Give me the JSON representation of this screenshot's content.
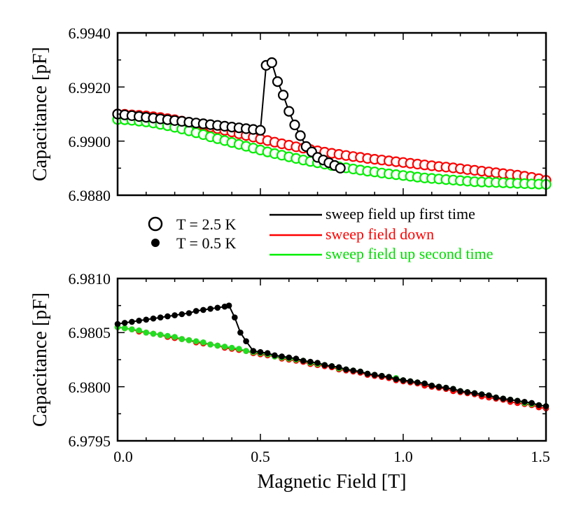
{
  "chart_data": [
    {
      "type": "scatter",
      "title": "",
      "temperature_label": "T = 2.5 K",
      "xlabel": "",
      "ylabel": "Capacitance [pF]",
      "xlim": [
        0,
        1.5
      ],
      "ylim": [
        6.988,
        6.994
      ],
      "yticks": [
        "6.9880",
        "6.9900",
        "6.9920",
        "6.9940"
      ],
      "series": [
        {
          "name": "sweep field up first time",
          "color": "#000000",
          "marker": "open-circle",
          "x": [
            0.0,
            0.025,
            0.05,
            0.075,
            0.1,
            0.125,
            0.15,
            0.175,
            0.2,
            0.225,
            0.25,
            0.275,
            0.3,
            0.325,
            0.35,
            0.375,
            0.4,
            0.425,
            0.45,
            0.475,
            0.5,
            0.52,
            0.54,
            0.56,
            0.58,
            0.6,
            0.62,
            0.64,
            0.66,
            0.68,
            0.7,
            0.72,
            0.74,
            0.76,
            0.78
          ],
          "y": [
            6.991,
            6.99097,
            6.99094,
            6.99091,
            6.99088,
            6.99085,
            6.99082,
            6.99079,
            6.99076,
            6.99073,
            6.9907,
            6.99067,
            6.99064,
            6.99061,
            6.99058,
            6.99055,
            6.99052,
            6.99049,
            6.99046,
            6.99043,
            6.9904,
            6.9928,
            6.9929,
            6.9922,
            6.9917,
            6.9911,
            6.9906,
            6.9902,
            6.9898,
            6.9896,
            6.9894,
            6.9893,
            6.9892,
            6.9891,
            6.989
          ]
        },
        {
          "name": "sweep field down",
          "color": "#ff0000",
          "marker": "open-circle",
          "x": [
            0.0,
            0.025,
            0.05,
            0.075,
            0.1,
            0.125,
            0.15,
            0.175,
            0.2,
            0.225,
            0.25,
            0.275,
            0.3,
            0.325,
            0.35,
            0.375,
            0.4,
            0.425,
            0.45,
            0.475,
            0.5,
            0.525,
            0.55,
            0.575,
            0.6,
            0.625,
            0.65,
            0.675,
            0.7,
            0.725,
            0.75,
            0.775,
            0.8,
            0.825,
            0.85,
            0.875,
            0.9,
            0.925,
            0.95,
            0.975,
            1.0,
            1.025,
            1.05,
            1.075,
            1.1,
            1.125,
            1.15,
            1.175,
            1.2,
            1.225,
            1.25,
            1.275,
            1.3,
            1.325,
            1.35,
            1.375,
            1.4,
            1.425,
            1.45,
            1.475,
            1.5
          ],
          "y": [
            6.991,
            6.99099,
            6.99097,
            6.99095,
            6.99093,
            6.9909,
            6.99087,
            6.99083,
            6.99079,
            6.99074,
            6.99069,
            6.99064,
            6.99058,
            6.99052,
            6.99046,
            6.9904,
            6.99034,
            6.99027,
            6.99021,
            6.99015,
            6.99008,
            6.99002,
            6.98996,
            6.9899,
            6.98985,
            6.98979,
            6.98974,
            6.98969,
            6.98964,
            6.98959,
            6.98955,
            6.98951,
            6.98947,
            6.98943,
            6.9894,
            6.98936,
            6.98933,
            6.9893,
            6.98927,
            6.98924,
            6.98921,
            6.98918,
            6.98915,
            6.98912,
            6.98909,
            6.98906,
            6.98904,
            6.98901,
            6.98898,
            6.98895,
            6.98892,
            6.98889,
            6.98886,
            6.98883,
            6.9888,
            6.98877,
            6.98874,
            6.9887,
            6.98866,
            6.98861,
            6.98855
          ]
        },
        {
          "name": "sweep field up second time",
          "color": "#00ee00",
          "marker": "open-circle",
          "x": [
            0.0,
            0.025,
            0.05,
            0.075,
            0.1,
            0.125,
            0.15,
            0.175,
            0.2,
            0.225,
            0.25,
            0.275,
            0.3,
            0.325,
            0.35,
            0.375,
            0.4,
            0.425,
            0.45,
            0.475,
            0.5,
            0.525,
            0.55,
            0.575,
            0.6,
            0.625,
            0.65,
            0.675,
            0.7,
            0.725,
            0.75,
            0.775,
            0.8,
            0.825,
            0.85,
            0.875,
            0.9,
            0.925,
            0.95,
            0.975,
            1.0,
            1.025,
            1.05,
            1.075,
            1.1,
            1.125,
            1.15,
            1.175,
            1.2,
            1.225,
            1.25,
            1.275,
            1.3,
            1.325,
            1.35,
            1.375,
            1.4,
            1.425,
            1.45,
            1.475,
            1.5
          ],
          "y": [
            6.9908,
            6.99079,
            6.99077,
            6.99074,
            6.99071,
            6.99067,
            6.99062,
            6.99057,
            6.99051,
            6.99045,
            6.99038,
            6.99031,
            6.99024,
            6.99016,
            6.99009,
            6.99002,
            6.98995,
            6.98988,
            6.98981,
            6.98974,
            6.98967,
            6.9896,
            6.98954,
            6.98948,
            6.98942,
            6.98936,
            6.9893,
            6.98925,
            6.9892,
            6.98915,
            6.9891,
            6.98905,
            6.98901,
            6.98897,
            6.98893,
            6.98889,
            6.98886,
            6.98882,
            6.98879,
            6.98876,
            6.98873,
            6.9887,
            6.98867,
            6.98864,
            6.98862,
            6.9886,
            6.98858,
            6.98856,
            6.98854,
            6.98852,
            6.9885,
            6.98849,
            6.98848,
            6.98847,
            6.98846,
            6.98845,
            6.98844,
            6.98843,
            6.98842,
            6.98841,
            6.9884
          ]
        }
      ]
    },
    {
      "type": "scatter",
      "title": "",
      "temperature_label": "T = 0.5 K",
      "xlabel": "Magnetic Field [T]",
      "ylabel": "Capacitance [pF]",
      "xlim": [
        0,
        1.5
      ],
      "ylim": [
        6.9795,
        6.981
      ],
      "xticks": [
        "0.0",
        "0.5",
        "1.0",
        "1.5"
      ],
      "yticks": [
        "6.9795",
        "6.9800",
        "6.9805",
        "6.9810"
      ],
      "series": [
        {
          "name": "sweep field up first time",
          "color": "#000000",
          "marker": "filled-circle",
          "x": [
            0.0,
            0.025,
            0.05,
            0.075,
            0.1,
            0.125,
            0.15,
            0.175,
            0.2,
            0.225,
            0.25,
            0.275,
            0.3,
            0.325,
            0.35,
            0.375,
            0.39,
            0.41,
            0.43,
            0.45,
            0.475,
            0.5,
            0.525,
            0.55,
            0.575,
            0.6,
            0.625,
            0.65,
            0.675,
            0.7,
            0.725,
            0.75,
            0.775,
            0.8,
            0.825,
            0.85,
            0.875,
            0.9,
            0.925,
            0.95,
            0.975,
            1.0,
            1.025,
            1.05,
            1.075,
            1.1,
            1.125,
            1.15,
            1.175,
            1.2,
            1.225,
            1.25,
            1.275,
            1.3,
            1.325,
            1.35,
            1.375,
            1.4,
            1.425,
            1.45,
            1.475,
            1.5
          ],
          "y": [
            6.98058,
            6.98059,
            6.9806,
            6.98061,
            6.98062,
            6.98063,
            6.98064,
            6.98065,
            6.98066,
            6.98067,
            6.98068,
            6.9807,
            6.98071,
            6.98072,
            6.98073,
            6.98074,
            6.98075,
            6.98064,
            6.9805,
            6.98042,
            6.98033,
            6.98032,
            6.98031,
            6.98029,
            6.98028,
            6.98027,
            6.98026,
            6.98024,
            6.98023,
            6.98022,
            6.9802,
            6.98019,
            6.98018,
            6.98016,
            6.98015,
            6.98014,
            6.98012,
            6.98011,
            6.9801,
            6.98009,
            6.98007,
            6.98006,
            6.98005,
            6.98004,
            6.98003,
            6.98001,
            6.98,
            6.97999,
            6.97998,
            6.97996,
            6.97995,
            6.97994,
            6.97993,
            6.97992,
            6.9799,
            6.97989,
            6.97988,
            6.97987,
            6.97986,
            6.97985,
            6.97983,
            6.97982
          ]
        },
        {
          "name": "sweep field down",
          "color": "#ff0000",
          "marker": "filled-circle",
          "x": [
            0.0,
            0.025,
            0.05,
            0.075,
            0.1,
            0.125,
            0.15,
            0.175,
            0.2,
            0.225,
            0.25,
            0.275,
            0.3,
            0.325,
            0.35,
            0.375,
            0.4,
            0.425,
            0.45,
            0.475,
            0.5,
            0.525,
            0.55,
            0.575,
            0.6,
            0.625,
            0.65,
            0.675,
            0.7,
            0.725,
            0.75,
            0.775,
            0.8,
            0.825,
            0.85,
            0.875,
            0.9,
            0.925,
            0.95,
            0.975,
            1.0,
            1.025,
            1.05,
            1.075,
            1.1,
            1.125,
            1.15,
            1.175,
            1.2,
            1.225,
            1.25,
            1.275,
            1.3,
            1.325,
            1.35,
            1.375,
            1.4,
            1.425,
            1.45,
            1.475,
            1.5
          ],
          "y": [
            6.98055,
            6.98054,
            6.98053,
            6.98051,
            6.9805,
            6.98049,
            6.98048,
            6.98046,
            6.98045,
            6.98044,
            6.98043,
            6.98041,
            6.9804,
            6.98039,
            6.98038,
            6.98036,
            6.98035,
            6.98034,
            6.98033,
            6.98031,
            6.9803,
            6.98029,
            6.98028,
            6.98026,
            6.98025,
            6.98024,
            6.98023,
            6.98021,
            6.9802,
            6.98019,
            6.98018,
            6.98016,
            6.98015,
            6.98014,
            6.98013,
            6.98011,
            6.9801,
            6.98009,
            6.98008,
            6.98006,
            6.98005,
            6.98004,
            6.98003,
            6.98001,
            6.98,
            6.97999,
            6.97998,
            6.97996,
            6.97995,
            6.97994,
            6.97993,
            6.97991,
            6.9799,
            6.97989,
            6.97988,
            6.97986,
            6.97985,
            6.97984,
            6.97983,
            6.97981,
            6.9798
          ]
        },
        {
          "name": "sweep field up second time",
          "color": "#22dd22",
          "marker": "filled-circle",
          "x": [
            0.0,
            0.025,
            0.05,
            0.075,
            0.1,
            0.125,
            0.15,
            0.175,
            0.2,
            0.225,
            0.25,
            0.275,
            0.3,
            0.325,
            0.35,
            0.375,
            0.4,
            0.425,
            0.45,
            0.475,
            0.5,
            0.525,
            0.55,
            0.575,
            0.6,
            0.625,
            0.65,
            0.675,
            0.7,
            0.725,
            0.75,
            0.775,
            0.8,
            0.825,
            0.85,
            0.875,
            0.9,
            0.925,
            0.95,
            0.975,
            1.0,
            1.025,
            1.05,
            1.075,
            1.1,
            1.125,
            1.15,
            1.175,
            1.2,
            1.225,
            1.25,
            1.275,
            1.3,
            1.325,
            1.35,
            1.375,
            1.4,
            1.425,
            1.45,
            1.475,
            1.5
          ],
          "y": [
            6.98055,
            6.98054,
            6.98053,
            6.98052,
            6.9805,
            6.98049,
            6.98048,
            6.98047,
            6.98046,
            6.98044,
            6.98043,
            6.98042,
            6.98041,
            6.98039,
            6.98038,
            6.98037,
            6.98036,
            6.98035,
            6.98033,
            6.98032,
            6.98031,
            6.9803,
            6.98028,
            6.98027,
            6.98026,
            6.98025,
            6.98024,
            6.98022,
            6.98021,
            6.9802,
            6.98019,
            6.98017,
            6.98016,
            6.98015,
            6.98014,
            6.98012,
            6.98011,
            6.9801,
            6.98009,
            6.98008,
            6.98006,
            6.98005,
            6.98004,
            6.98003,
            6.98001,
            6.98,
            6.97999,
            6.97998,
            6.97996,
            6.97995,
            6.97994,
            6.97993,
            6.97992,
            6.9799,
            6.97989,
            6.97988,
            6.97987,
            6.97985,
            6.97984,
            6.97983,
            6.97982
          ]
        }
      ]
    }
  ]
}
